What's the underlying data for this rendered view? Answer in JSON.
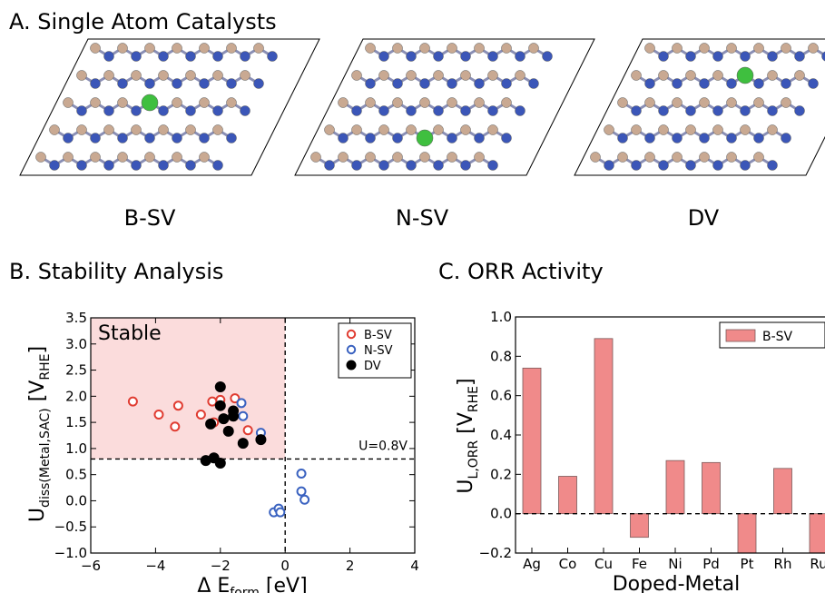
{
  "panel_a": {
    "title": "A. Single Atom Catalysts",
    "structures": [
      {
        "label": "B-SV",
        "dopant_at": "B-site single vacancy"
      },
      {
        "label": "N-SV",
        "dopant_at": "N-site single vacancy"
      },
      {
        "label": "DV",
        "dopant_at": "double vacancy"
      }
    ],
    "colors": {
      "boron": "#c9a992",
      "nitrogen": "#3b56b8",
      "metal": "#3fbf3f",
      "bond": "#8a8fb5"
    }
  },
  "panel_b": {
    "title": "B. Stability Analysis"
  },
  "panel_c": {
    "title": "C. ORR Activity"
  },
  "chart_data": [
    {
      "type": "scatter",
      "panel": "B",
      "xlabel": "Δ E",
      "xlabel_sub": "form",
      "xlabel_unit": " [eV]",
      "ylabel": "U",
      "ylabel_sub": "diss(Metal,SAC)",
      "ylabel_unit_open": " [V",
      "ylabel_unit_sub": "RHE",
      "ylabel_unit_close": "]",
      "xlim": [
        -6,
        4
      ],
      "ylim": [
        -1.0,
        3.5
      ],
      "xticks": [
        "−6",
        "−4",
        "−2",
        "0",
        "2",
        "4"
      ],
      "yticks": [
        "−1.0",
        "−0.5",
        "0.0",
        "0.5",
        "1.0",
        "1.5",
        "2.0",
        "2.5",
        "3.0",
        "3.5"
      ],
      "region_label": "Stable",
      "threshold_label": "U=0.8V",
      "threshold": 0.8,
      "legend_position": "top-right",
      "series": [
        {
          "name": "B-SV",
          "marker": "open",
          "color": "#e03c31",
          "points": [
            [
              -4.7,
              1.9
            ],
            [
              -3.9,
              1.65
            ],
            [
              -3.4,
              1.42
            ],
            [
              -3.3,
              1.82
            ],
            [
              -2.6,
              1.65
            ],
            [
              -2.25,
              1.9
            ],
            [
              -2.0,
              1.93
            ],
            [
              -2.2,
              1.5
            ],
            [
              -1.55,
              1.96
            ],
            [
              -1.15,
              1.35
            ]
          ]
        },
        {
          "name": "N-SV",
          "marker": "open",
          "color": "#3a62c0",
          "points": [
            [
              -1.35,
              1.87
            ],
            [
              -1.3,
              1.62
            ],
            [
              -0.75,
              1.3
            ],
            [
              0.5,
              0.52
            ],
            [
              0.5,
              0.18
            ],
            [
              0.6,
              0.02
            ],
            [
              -0.35,
              -0.22
            ],
            [
              -0.2,
              -0.15
            ],
            [
              -0.15,
              -0.22
            ]
          ]
        },
        {
          "name": "DV",
          "marker": "filled",
          "color": "#000000",
          "points": [
            [
              -2.0,
              2.18
            ],
            [
              -2.0,
              1.82
            ],
            [
              -2.3,
              1.47
            ],
            [
              -1.9,
              1.57
            ],
            [
              -1.6,
              1.72
            ],
            [
              -1.6,
              1.62
            ],
            [
              -1.75,
              1.33
            ],
            [
              -1.3,
              1.1
            ],
            [
              -0.75,
              1.17
            ],
            [
              -2.45,
              0.77
            ],
            [
              -2.2,
              0.82
            ],
            [
              -2.0,
              0.72
            ]
          ]
        }
      ]
    },
    {
      "type": "bar",
      "panel": "C",
      "xlabel": "Doped-Metal",
      "ylabel": "U",
      "ylabel_sub": "L,ORR",
      "ylabel_unit_open": " [V",
      "ylabel_unit_sub": "RHE",
      "ylabel_unit_close": "]",
      "categories": [
        "Ag",
        "Co",
        "Cu",
        "Fe",
        "Ni",
        "Pd",
        "Pt",
        "Rh",
        "Ru"
      ],
      "series": [
        {
          "name": "B-SV",
          "color": "#f08a8a",
          "values": [
            0.74,
            0.19,
            0.89,
            -0.12,
            0.27,
            0.26,
            -0.2,
            0.23,
            -0.2
          ]
        }
      ],
      "ylim": [
        -0.2,
        1.0
      ],
      "yticks": [
        "−0.2",
        "0.0",
        "0.2",
        "0.4",
        "0.6",
        "0.8",
        "1.0"
      ],
      "legend_position": "top-right"
    }
  ]
}
